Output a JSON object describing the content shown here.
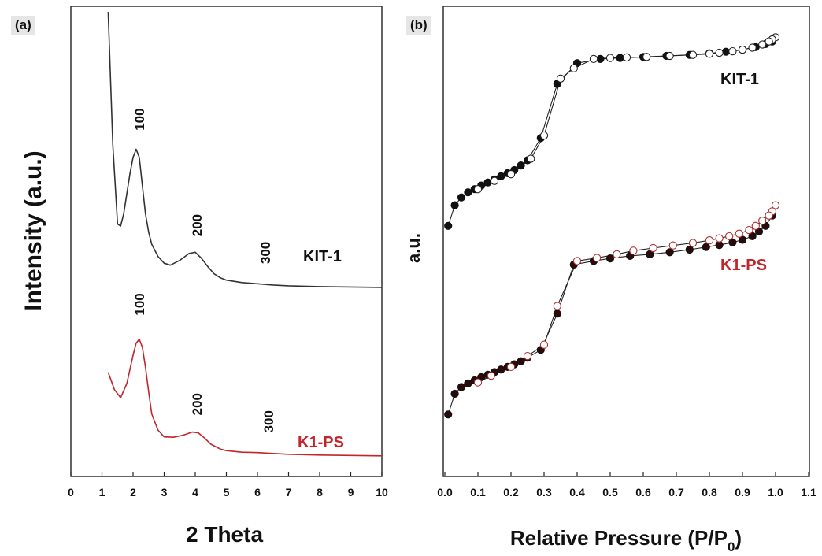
{
  "chart_data": [
    {
      "panel": "(a)",
      "type": "line",
      "xlabel": "2 Theta",
      "ylabel": "Intensity (a.u.)",
      "xlim": [
        0,
        10
      ],
      "xticks": [
        "0",
        "1",
        "2",
        "3",
        "4",
        "5",
        "6",
        "7",
        "8",
        "9",
        "10"
      ],
      "series": [
        {
          "name": "KIT-1",
          "color": "#333333",
          "x": [
            1.2,
            1.35,
            1.5,
            1.6,
            1.7,
            1.8,
            1.9,
            2.0,
            2.1,
            2.2,
            2.3,
            2.4,
            2.5,
            2.6,
            2.8,
            3.0,
            3.2,
            3.5,
            3.8,
            4.0,
            4.2,
            4.4,
            4.6,
            4.8,
            5.0,
            5.5,
            6.0,
            6.5,
            7.0,
            8.0,
            9.0,
            10.0
          ],
          "y": [
            8.2,
            4.9,
            2.95,
            2.9,
            3.2,
            3.7,
            4.2,
            4.6,
            4.8,
            4.6,
            3.9,
            3.2,
            2.75,
            2.45,
            2.15,
            1.98,
            1.93,
            2.05,
            2.22,
            2.25,
            2.1,
            1.9,
            1.72,
            1.62,
            1.56,
            1.5,
            1.47,
            1.44,
            1.42,
            1.4,
            1.39,
            1.38
          ]
        },
        {
          "name": "K1-PS",
          "color": "#c0262b",
          "x": [
            1.2,
            1.4,
            1.6,
            1.8,
            2.0,
            2.1,
            2.2,
            2.3,
            2.4,
            2.5,
            2.6,
            2.8,
            3.0,
            3.3,
            3.6,
            3.9,
            4.1,
            4.3,
            4.5,
            4.8,
            5.0,
            5.5,
            6.0,
            6.5,
            7.0,
            8.0,
            9.0,
            10.0
          ],
          "y": [
            -0.72,
            -1.15,
            -1.35,
            -1.0,
            -0.3,
            0.0,
            0.1,
            -0.1,
            -0.6,
            -1.2,
            -1.75,
            -2.15,
            -2.32,
            -2.33,
            -2.28,
            -2.2,
            -2.22,
            -2.35,
            -2.5,
            -2.62,
            -2.66,
            -2.7,
            -2.71,
            -2.73,
            -2.75,
            -2.77,
            -2.78,
            -2.79
          ]
        }
      ],
      "annotations": [
        {
          "text": "100",
          "series": "KIT-1",
          "x": 2.2
        },
        {
          "text": "200",
          "series": "KIT-1",
          "x": 4.05
        },
        {
          "text": "300",
          "series": "KIT-1",
          "x": 6.25
        },
        {
          "text": "100",
          "series": "K1-PS",
          "x": 2.2
        },
        {
          "text": "200",
          "series": "K1-PS",
          "x": 4.05
        },
        {
          "text": "300",
          "series": "K1-PS",
          "x": 6.35
        }
      ]
    },
    {
      "panel": "(b)",
      "type": "scatter",
      "xlabel_main": "Relative Pressure (P/P",
      "xlabel_sub": "0",
      "xlabel_end": ")",
      "ylabel": "a.u.",
      "xlim": [
        0.0,
        1.1
      ],
      "xticks": [
        "0.0",
        "0.1",
        "0.2",
        "0.3",
        "0.4",
        "0.5",
        "0.6",
        "0.7",
        "0.8",
        "0.9",
        "1.0",
        "1.1"
      ],
      "series": [
        {
          "name": "KIT-1",
          "color": "#111111",
          "adsorption_x": [
            0.01,
            0.03,
            0.05,
            0.07,
            0.09,
            0.11,
            0.13,
            0.15,
            0.17,
            0.19,
            0.21,
            0.23,
            0.25,
            0.29,
            0.34,
            0.4,
            0.47,
            0.53,
            0.6,
            0.67,
            0.74,
            0.8,
            0.85,
            0.9,
            0.94,
            0.97,
            0.99
          ],
          "adsorption_y": [
            3.15,
            3.55,
            3.7,
            3.8,
            3.86,
            3.93,
            3.99,
            4.05,
            4.11,
            4.17,
            4.23,
            4.32,
            4.42,
            4.85,
            5.9,
            6.3,
            6.38,
            6.4,
            6.42,
            6.44,
            6.46,
            6.49,
            6.52,
            6.56,
            6.61,
            6.67,
            6.72
          ],
          "desorption_x": [
            1.0,
            0.99,
            0.98,
            0.96,
            0.93,
            0.9,
            0.87,
            0.83,
            0.8,
            0.75,
            0.68,
            0.61,
            0.55,
            0.5,
            0.45,
            0.39,
            0.35,
            0.3,
            0.26,
            0.2,
            0.15,
            0.1
          ],
          "desorption_y": [
            6.8,
            6.76,
            6.72,
            6.66,
            6.6,
            6.56,
            6.53,
            6.5,
            6.48,
            6.46,
            6.44,
            6.42,
            6.41,
            6.4,
            6.38,
            6.2,
            6.0,
            4.9,
            4.45,
            4.15,
            4.02,
            3.86
          ]
        },
        {
          "name": "K1-PS",
          "color": "#c0262b",
          "adsorption_x": [
            0.01,
            0.03,
            0.05,
            0.07,
            0.09,
            0.11,
            0.13,
            0.15,
            0.17,
            0.19,
            0.21,
            0.23,
            0.25,
            0.29,
            0.34,
            0.39,
            0.45,
            0.5,
            0.56,
            0.62,
            0.68,
            0.74,
            0.79,
            0.83,
            0.87,
            0.9,
            0.93,
            0.95,
            0.97,
            0.99
          ],
          "adsorption_y": [
            -0.5,
            -0.1,
            0.03,
            0.1,
            0.16,
            0.22,
            0.27,
            0.32,
            0.37,
            0.42,
            0.47,
            0.53,
            0.6,
            0.75,
            1.45,
            2.4,
            2.47,
            2.52,
            2.57,
            2.6,
            2.64,
            2.69,
            2.74,
            2.78,
            2.83,
            2.88,
            2.95,
            3.04,
            3.15,
            3.35
          ],
          "desorption_x": [
            1.0,
            0.99,
            0.98,
            0.96,
            0.94,
            0.92,
            0.89,
            0.86,
            0.83,
            0.8,
            0.75,
            0.69,
            0.63,
            0.57,
            0.52,
            0.46,
            0.4,
            0.34,
            0.3,
            0.25,
            0.2,
            0.14,
            0.1
          ],
          "desorption_y": [
            3.55,
            3.43,
            3.35,
            3.25,
            3.15,
            3.07,
            3.0,
            2.95,
            2.91,
            2.87,
            2.82,
            2.77,
            2.72,
            2.67,
            2.6,
            2.53,
            2.47,
            1.6,
            0.85,
            0.63,
            0.42,
            0.25,
            0.12
          ]
        }
      ]
    }
  ]
}
